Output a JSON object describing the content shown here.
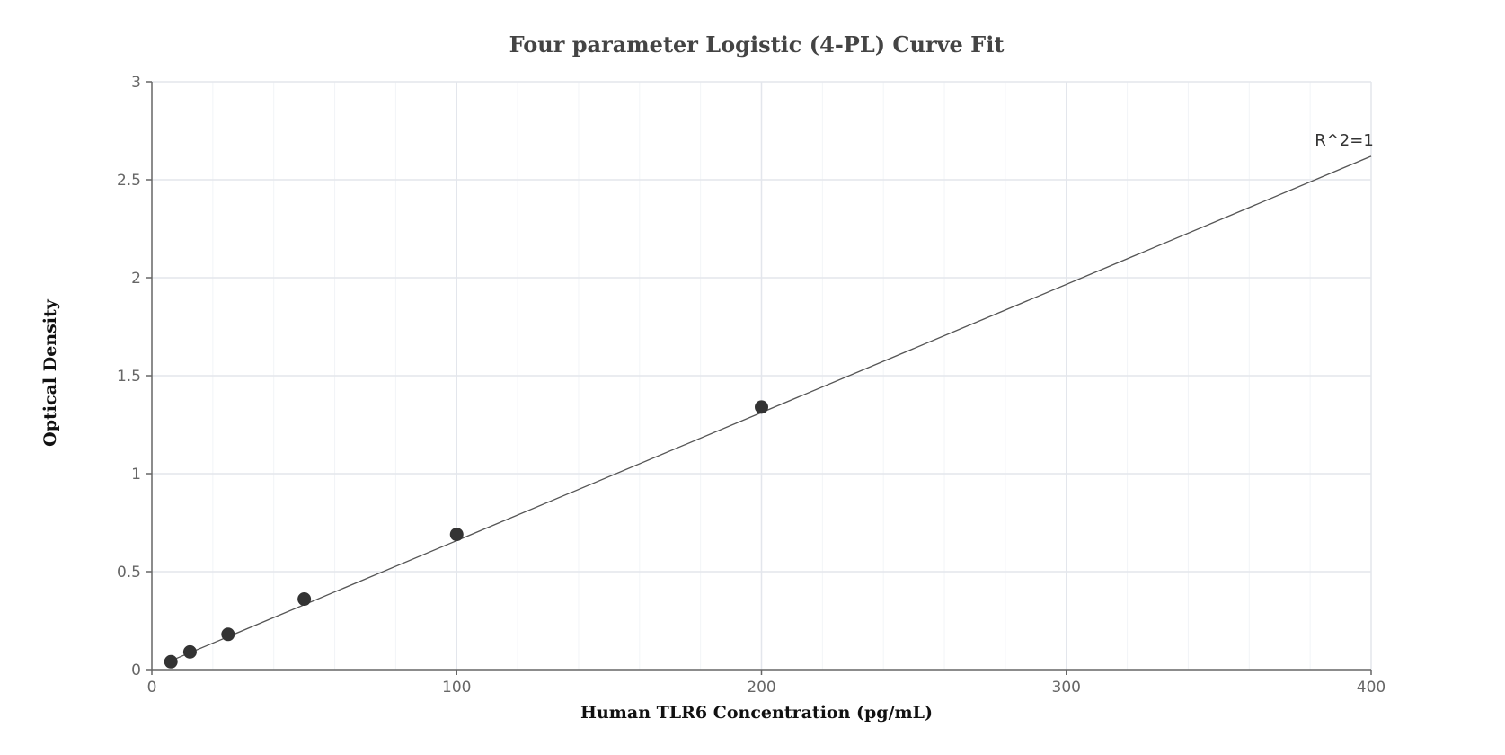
{
  "chart_data": {
    "type": "scatter",
    "title": "Four parameter Logistic (4-PL) Curve Fit",
    "xlabel": "Human TLR6 Concentration (pg/mL)",
    "ylabel": "Optical Density",
    "xlim": [
      0,
      400
    ],
    "ylim": [
      0,
      3
    ],
    "x_ticks": [
      0,
      100,
      200,
      300,
      400
    ],
    "y_ticks": [
      0,
      0.5,
      1,
      1.5,
      2,
      2.5,
      3
    ],
    "x_tick_labels": [
      "0",
      "100",
      "200",
      "300",
      "400"
    ],
    "y_tick_labels": [
      "0",
      "0.5",
      "1",
      "1.5",
      "2",
      "2.5",
      "3"
    ],
    "grid": true,
    "series": [
      {
        "type": "scatter",
        "x": [
          6.25,
          12.5,
          25,
          50,
          100,
          200
        ],
        "y": [
          0.04,
          0.09,
          0.18,
          0.36,
          0.69,
          1.34
        ]
      },
      {
        "type": "line",
        "x": [
          6.25,
          400
        ],
        "y": [
          0.045,
          2.62
        ]
      }
    ],
    "annotations": [
      {
        "text": "R^2=1",
        "x": 400,
        "y": 2.62
      }
    ],
    "colors": {
      "points": "#333333",
      "fit_line": "#555555",
      "grid_major": "#e3e6ec",
      "grid_minor": "#f2f4f7",
      "axis": "#666666"
    }
  }
}
